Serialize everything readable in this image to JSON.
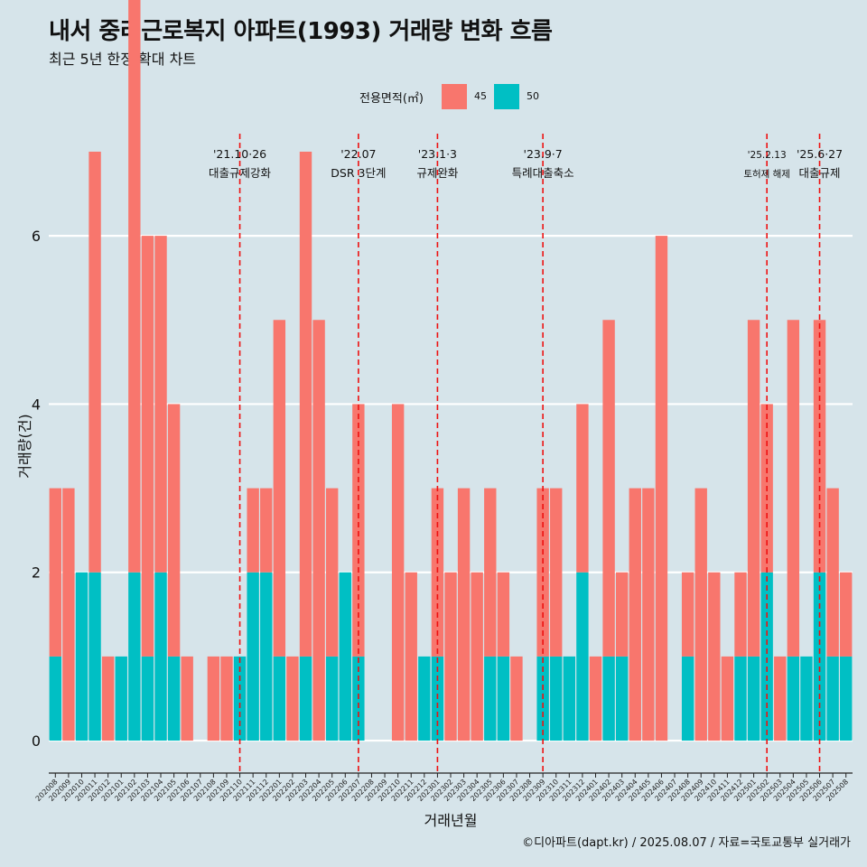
{
  "header": {
    "title": "내서 중리근로복지 아파트(1993) 거래량 변화 흐름",
    "subtitle": "최근 5년 한정 확대 차트"
  },
  "legend": {
    "title": "전용면적(㎡)",
    "items": [
      {
        "label": "45",
        "color": "#f8766d"
      },
      {
        "label": "50",
        "color": "#00bfc4"
      }
    ]
  },
  "caption": "©디아파트(dapt.kr) / 2025.08.07 / 자료=국토교통부 실거래가",
  "colors": {
    "background": "#d6e4ea",
    "grid": "#ffffff",
    "vline": "#ee1111",
    "series45": "#f8766d",
    "series50": "#00bfc4"
  },
  "chart_data": {
    "type": "bar",
    "title": "내서 중리근로복지 아파트(1993) 거래량 변화 흐름",
    "xlabel": "거래년월",
    "ylabel": "거래량(건)",
    "ylim": [
      -0.3,
      7.3
    ],
    "yticks": [
      0,
      2,
      4,
      6
    ],
    "grid": true,
    "legend_position": "top",
    "categories": [
      "202008",
      "202009",
      "202010",
      "202011",
      "202012",
      "202101",
      "202102",
      "202103",
      "202104",
      "202105",
      "202106",
      "202107",
      "202108",
      "202109",
      "202110",
      "202111",
      "202112",
      "202201",
      "202202",
      "202203",
      "202204",
      "202205",
      "202206",
      "202207",
      "202208",
      "202209",
      "202210",
      "202211",
      "202212",
      "202301",
      "202302",
      "202303",
      "202304",
      "202305",
      "202306",
      "202307",
      "202308",
      "202309",
      "202310",
      "202311",
      "202312",
      "202401",
      "202402",
      "202403",
      "202404",
      "202405",
      "202406",
      "202407",
      "202408",
      "202409",
      "202410",
      "202411",
      "202412",
      "202501",
      "202502",
      "202503",
      "202504",
      "202505",
      "202506",
      "202507",
      "202508"
    ],
    "series": [
      {
        "name": "45",
        "values": [
          2,
          3,
          0,
          5,
          1,
          0,
          7,
          5,
          4,
          3,
          1,
          0,
          1,
          1,
          0,
          1,
          1,
          4,
          1,
          6,
          5,
          2,
          0,
          3,
          0,
          0,
          4,
          2,
          0,
          2,
          2,
          3,
          2,
          2,
          1,
          1,
          0,
          2,
          2,
          0,
          2,
          1,
          4,
          1,
          3,
          3,
          6,
          0,
          1,
          3,
          2,
          1,
          1,
          4,
          2,
          1,
          4,
          0,
          3,
          2,
          1
        ]
      },
      {
        "name": "50",
        "values": [
          1,
          0,
          2,
          2,
          0,
          1,
          2,
          1,
          2,
          1,
          0,
          0,
          0,
          0,
          1,
          2,
          2,
          1,
          0,
          1,
          0,
          1,
          2,
          1,
          0,
          0,
          0,
          0,
          1,
          1,
          0,
          0,
          0,
          1,
          1,
          0,
          0,
          1,
          1,
          1,
          2,
          0,
          1,
          1,
          0,
          0,
          0,
          0,
          1,
          0,
          0,
          0,
          1,
          1,
          2,
          0,
          1,
          1,
          2,
          1,
          1
        ]
      }
    ],
    "annotations": [
      {
        "x": "202110",
        "line1": "'21.10·26",
        "line2": "대출규제강화"
      },
      {
        "x": "202207",
        "line1": "'22.07",
        "line2": "DSR 3단계"
      },
      {
        "x": "202301",
        "line1": "'23.1·3",
        "line2": "규제완화"
      },
      {
        "x": "202309",
        "line1": "'23.9·7",
        "line2": "특례대출축소"
      },
      {
        "x": "202502",
        "line1": "'25.2.13",
        "line2": "토허제 해제"
      },
      {
        "x": "202506",
        "line1": "'25.6·27",
        "line2": "대출규제"
      }
    ]
  }
}
